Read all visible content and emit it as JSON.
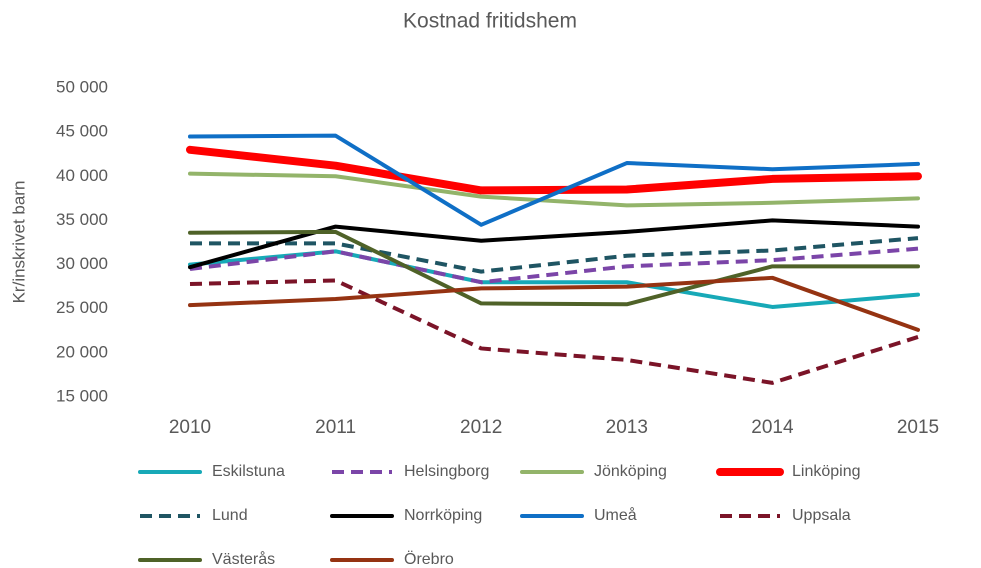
{
  "chart_data": {
    "type": "line",
    "title": "Kostnad fritidshem",
    "y_label": "Kr/inskrivet barn",
    "categories": [
      "2010",
      "2011",
      "2012",
      "2013",
      "2014",
      "2015"
    ],
    "ylim": [
      15000,
      50000
    ],
    "yticks": [
      {
        "value": 15000,
        "label": "15 000"
      },
      {
        "value": 20000,
        "label": "20 000"
      },
      {
        "value": 25000,
        "label": "25 000"
      },
      {
        "value": 30000,
        "label": "30 000"
      },
      {
        "value": 35000,
        "label": "35 000"
      },
      {
        "value": 40000,
        "label": "40 000"
      },
      {
        "value": 45000,
        "label": "45 000"
      },
      {
        "value": 50000,
        "label": "50 000"
      }
    ],
    "grid": false,
    "series": [
      {
        "name": "Eskilstuna",
        "color": "#17a9b7",
        "dashed": false,
        "values": [
          30000,
          31500,
          28000,
          28000,
          25200,
          26600
        ]
      },
      {
        "name": "Helsingborg",
        "color": "#7b45a8",
        "dashed": true,
        "values": [
          29500,
          31500,
          28000,
          29800,
          30500,
          31800
        ]
      },
      {
        "name": "Jönköping",
        "color": "#93b46a",
        "dashed": false,
        "values": [
          40300,
          40000,
          37700,
          36700,
          37000,
          37500
        ]
      },
      {
        "name": "Linköping",
        "color": "#ff0000",
        "dashed": false,
        "thick": true,
        "values": [
          43000,
          41200,
          38400,
          38500,
          39700,
          40000
        ]
      },
      {
        "name": "Lund",
        "color": "#1f5563",
        "dashed": true,
        "values": [
          32400,
          32400,
          29200,
          31000,
          31600,
          33000
        ]
      },
      {
        "name": "Norrköping",
        "color": "#000000",
        "dashed": false,
        "values": [
          29700,
          34300,
          32700,
          33700,
          35000,
          34300
        ]
      },
      {
        "name": "Umeå",
        "color": "#0f6fc6",
        "dashed": false,
        "values": [
          44500,
          44600,
          34500,
          41500,
          40800,
          41400
        ]
      },
      {
        "name": "Uppsala",
        "color": "#7b1428",
        "dashed": true,
        "values": [
          27800,
          28200,
          20500,
          19200,
          16600,
          21800
        ]
      },
      {
        "name": "Västerås",
        "color": "#4f6228",
        "dashed": false,
        "values": [
          33600,
          33700,
          25600,
          25500,
          29800,
          29800
        ]
      },
      {
        "name": "Örebro",
        "color": "#953312",
        "dashed": false,
        "values": [
          25400,
          26100,
          27300,
          27500,
          28500,
          22600
        ]
      }
    ]
  }
}
